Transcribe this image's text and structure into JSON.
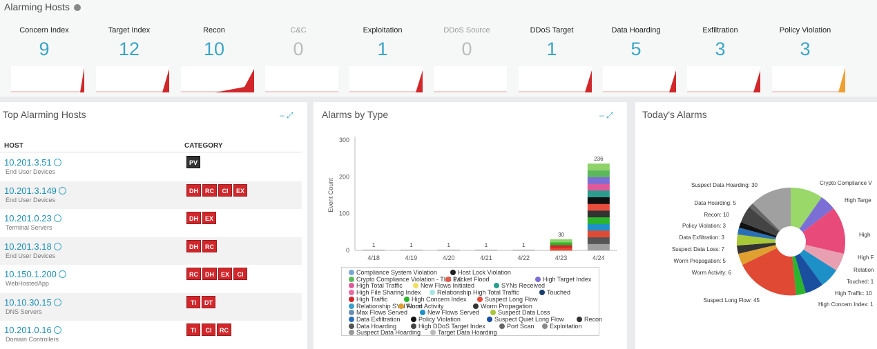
{
  "header": {
    "title": "Alarming Hosts"
  },
  "tiles": [
    {
      "label": "Concern Index",
      "value": "9",
      "dim": false,
      "color": "#d1272b"
    },
    {
      "label": "Target Index",
      "value": "12",
      "dim": false,
      "color": "#d1272b"
    },
    {
      "label": "Recon",
      "value": "10",
      "dim": false,
      "color": "#d1272b"
    },
    {
      "label": "C&C",
      "value": "0",
      "dim": true,
      "color": "#cccccc"
    },
    {
      "label": "Exploitation",
      "value": "1",
      "dim": false,
      "color": "#d1272b"
    },
    {
      "label": "DDoS Source",
      "value": "0",
      "dim": true,
      "color": "#cccccc"
    },
    {
      "label": "DDoS Target",
      "value": "1",
      "dim": false,
      "color": "#d1272b"
    },
    {
      "label": "Data Hoarding",
      "value": "5",
      "dim": false,
      "color": "#d1272b"
    },
    {
      "label": "Exfiltration",
      "value": "3",
      "dim": false,
      "color": "#d1272b"
    },
    {
      "label": "Policy Violation",
      "value": "3",
      "dim": false,
      "color": "#f0a032"
    }
  ],
  "top_hosts": {
    "title": "Top Alarming Hosts",
    "col_host": "HOST",
    "col_category": "CATEGORY",
    "rows": [
      {
        "ip": "10.201.3.51",
        "group": "End User Devices",
        "tags": [
          "PV"
        ]
      },
      {
        "ip": "10.201.3.149",
        "group": "End User Devices",
        "tags": [
          "DH",
          "RC",
          "CI",
          "EX"
        ]
      },
      {
        "ip": "10.201.0.23",
        "group": "Terminal Servers",
        "tags": [
          "DH",
          "EX"
        ]
      },
      {
        "ip": "10.201.3.18",
        "group": "End User Devices",
        "tags": [
          "DH",
          "RC"
        ]
      },
      {
        "ip": "10.150.1.200",
        "group": "WebHostedApp",
        "tags": [
          "RC",
          "DH",
          "EX",
          "CI"
        ]
      },
      {
        "ip": "10.10.30.15",
        "group": "DNS Servers",
        "tags": [
          "TI",
          "DT"
        ]
      },
      {
        "ip": "10.201.0.16",
        "group": "Domain Controllers",
        "tags": [
          "TI",
          "CI",
          "RC"
        ]
      }
    ]
  },
  "alarms_by_type": {
    "title": "Alarms by Type",
    "legend": [
      {
        "label": "Compliance System Violation",
        "color": "#7aa6d6"
      },
      {
        "label": "Host Lock Violation",
        "color": "#222222"
      },
      {
        "label": "Crypto Compliance Violation - TLS 1.0",
        "color": "#5cb85c"
      },
      {
        "label": "Packet Flood",
        "color": "#e35b4b"
      },
      {
        "label": "High Target Index",
        "color": "#7b6fd6"
      },
      {
        "label": "High Total Traffic",
        "color": "#e05a9a"
      },
      {
        "label": "New Flows Initiated",
        "color": "#f0e060"
      },
      {
        "label": "SYNs Received",
        "color": "#2a9d8f"
      },
      {
        "label": "High File Sharing Index",
        "color": "#e86aa0"
      },
      {
        "label": "Relationship High Total Traffic",
        "color": "#a8e6e0"
      },
      {
        "label": "Touched",
        "color": "#1a3e6e"
      },
      {
        "label": "High Traffic",
        "color": "#d1272b"
      },
      {
        "label": "High Concern Index",
        "color": "#2cb52c"
      },
      {
        "label": "Suspect Long Flow",
        "color": "#e84c3d"
      },
      {
        "label": "Relationship SYN Flood",
        "color": "#3aa0c8"
      },
      {
        "label": "Worm Activity",
        "color": "#e0a030"
      },
      {
        "label": "Worm Propagation",
        "color": "#333333"
      },
      {
        "label": "Max Flows Served",
        "color": "#6a8fb0"
      },
      {
        "label": "New Flows Served",
        "color": "#1e90c8"
      },
      {
        "label": "Suspect Data Loss",
        "color": "#a8c838"
      },
      {
        "label": "Data Exfiltration",
        "color": "#2a6fb5"
      },
      {
        "label": "Policy Violation",
        "color": "#111111"
      },
      {
        "label": "Suspect Quiet Long Flow",
        "color": "#1a4fa0"
      },
      {
        "label": "Recon",
        "color": "#333333"
      },
      {
        "label": "Data Hoarding",
        "color": "#555555"
      },
      {
        "label": "High DDoS Target Index",
        "color": "#444444"
      },
      {
        "label": "Port Scan",
        "color": "#666666"
      },
      {
        "label": "Exploitation",
        "color": "#888888"
      },
      {
        "label": "Suspect Data Hoarding",
        "color": "#999999"
      },
      {
        "label": "Target Data Hoarding",
        "color": "#bbbbbb"
      }
    ]
  },
  "chart_data": {
    "type": "bar",
    "title": "Alarms by Type",
    "ylabel": "Event Count",
    "categories": [
      "4/18",
      "4/19",
      "4/20",
      "4/21",
      "4/22",
      "4/23",
      "4/24"
    ],
    "values": [
      1,
      1,
      1,
      1,
      1,
      30,
      236
    ],
    "ylim": [
      0,
      300
    ],
    "yticks": [
      0,
      100,
      200,
      300
    ]
  },
  "todays_alarms": {
    "title": "Today's Alarms",
    "labels": [
      "Suspect Data Hoarding: 30",
      "Data Hoarding: 5",
      "Recon: 10",
      "Policy Violation: 3",
      "Data Exfiltration: 3",
      "Suspect Data Loss: 7",
      "Worm Propagation: 5",
      "Worm Activity: 6",
      "Suspect Long Flow: 45",
      "High Concern Index: 1",
      "High Traffic: 10",
      "Touched: 1",
      "Relation",
      "High F",
      "High",
      "High Targe",
      "Crypto Compliance V"
    ]
  }
}
